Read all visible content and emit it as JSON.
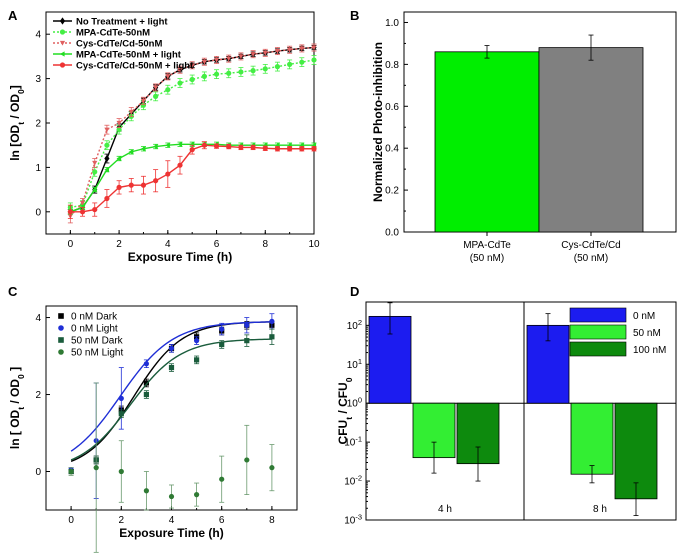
{
  "chart_data": [
    {
      "panel": "A",
      "type": "line",
      "xlabel": "Exposure Time (h)",
      "ylabel": "ln [OD_t / OD_0]",
      "xlim": [
        -1,
        10
      ],
      "ylim": [
        -0.5,
        4.5
      ],
      "xticks": [
        0,
        2,
        4,
        6,
        8,
        10
      ],
      "yticks": [
        0,
        1,
        2,
        3,
        4
      ],
      "legend_position": "top-left",
      "series": [
        {
          "name": "No Treatment + light",
          "color": "#000000",
          "marker": "diamond",
          "dash": "solid",
          "x": [
            0,
            0.5,
            1,
            1.5,
            2,
            2.5,
            3,
            3.5,
            4,
            4.5,
            5,
            5.5,
            6,
            6.5,
            7,
            7.5,
            8,
            8.5,
            9,
            9.5,
            10
          ],
          "y": [
            0.0,
            0.1,
            0.5,
            1.2,
            1.9,
            2.2,
            2.5,
            2.8,
            3.05,
            3.2,
            3.3,
            3.38,
            3.42,
            3.45,
            3.5,
            3.55,
            3.58,
            3.62,
            3.65,
            3.68,
            3.7
          ],
          "err": [
            0.05,
            0.05,
            0.08,
            0.1,
            0.08,
            0.06,
            0.06,
            0.06,
            0.06,
            0.05,
            0.05,
            0.05,
            0.05,
            0.05,
            0.05,
            0.05,
            0.05,
            0.05,
            0.05,
            0.05,
            0.05
          ]
        },
        {
          "name": "MPA-CdTe-50nM",
          "color": "#44ee44",
          "marker": "circle",
          "dash": "dotted",
          "x": [
            0,
            0.5,
            1,
            1.5,
            2,
            2.5,
            3,
            3.5,
            4,
            4.5,
            5,
            5.5,
            6,
            6.5,
            7,
            7.5,
            8,
            8.5,
            9,
            9.5,
            10
          ],
          "y": [
            0.1,
            0.15,
            0.9,
            1.5,
            1.85,
            2.15,
            2.4,
            2.6,
            2.75,
            2.9,
            2.98,
            3.05,
            3.1,
            3.12,
            3.15,
            3.18,
            3.22,
            3.27,
            3.32,
            3.37,
            3.42
          ],
          "err": [
            0.1,
            0.1,
            0.1,
            0.1,
            0.1,
            0.1,
            0.1,
            0.1,
            0.1,
            0.1,
            0.1,
            0.1,
            0.1,
            0.1,
            0.1,
            0.1,
            0.1,
            0.1,
            0.1,
            0.1,
            0.1
          ]
        },
        {
          "name": "Cys-CdTe/Cd-50nM",
          "color": "#e06060",
          "marker": "triangle-down",
          "dash": "dotted",
          "x": [
            0,
            0.5,
            1,
            1.5,
            2,
            2.5,
            3,
            3.5,
            4,
            4.5,
            5,
            5.5,
            6,
            6.5,
            7,
            7.5,
            8,
            8.5,
            9,
            9.5,
            10
          ],
          "y": [
            -0.1,
            0.2,
            1.1,
            1.85,
            2.0,
            2.25,
            2.5,
            2.8,
            3.05,
            3.2,
            3.3,
            3.38,
            3.42,
            3.45,
            3.5,
            3.55,
            3.58,
            3.62,
            3.65,
            3.68,
            3.7
          ],
          "err": [
            0.15,
            0.1,
            0.1,
            0.1,
            0.1,
            0.1,
            0.08,
            0.08,
            0.08,
            0.08,
            0.08,
            0.08,
            0.08,
            0.08,
            0.08,
            0.08,
            0.08,
            0.08,
            0.08,
            0.08,
            0.08
          ]
        },
        {
          "name": "MPA-CdTe-50nM + light",
          "color": "#22dd22",
          "marker": "triangle-left",
          "dash": "solid",
          "x": [
            0,
            0.5,
            1,
            1.5,
            2,
            2.5,
            3,
            3.5,
            4,
            4.5,
            5,
            5.5,
            6,
            6.5,
            7,
            7.5,
            8,
            8.5,
            9,
            9.5,
            10
          ],
          "y": [
            0.0,
            0.1,
            0.5,
            0.95,
            1.2,
            1.35,
            1.42,
            1.47,
            1.5,
            1.52,
            1.52,
            1.52,
            1.52,
            1.5,
            1.5,
            1.5,
            1.5,
            1.5,
            1.5,
            1.5,
            1.5
          ],
          "err": [
            0.05,
            0.05,
            0.05,
            0.05,
            0.05,
            0.05,
            0.05,
            0.05,
            0.05,
            0.05,
            0.05,
            0.05,
            0.05,
            0.05,
            0.05,
            0.05,
            0.05,
            0.05,
            0.05,
            0.05,
            0.05
          ]
        },
        {
          "name": "Cys-CdTe/Cd-50nM + light",
          "color": "#ee3333",
          "marker": "circle",
          "dash": "solid",
          "x": [
            0,
            0.5,
            1,
            1.5,
            2,
            2.5,
            3,
            3.5,
            4,
            4.5,
            5,
            5.5,
            6,
            6.5,
            7,
            7.5,
            8,
            8.5,
            9,
            9.5,
            10
          ],
          "y": [
            0.0,
            0.0,
            0.05,
            0.3,
            0.55,
            0.6,
            0.6,
            0.7,
            0.85,
            1.05,
            1.4,
            1.5,
            1.48,
            1.47,
            1.45,
            1.45,
            1.43,
            1.42,
            1.42,
            1.42,
            1.42
          ],
          "err": [
            0.15,
            0.1,
            0.15,
            0.2,
            0.15,
            0.15,
            0.2,
            0.25,
            0.3,
            0.2,
            0.1,
            0.08,
            0.05,
            0.05,
            0.05,
            0.05,
            0.05,
            0.05,
            0.05,
            0.05,
            0.05
          ]
        }
      ]
    },
    {
      "panel": "B",
      "type": "bar",
      "ylabel": "Normalized Photo-inhibition",
      "categories": [
        "MPA-CdTe\n(50 nM)",
        "Cys-CdTe/Cd\n(50 nM)"
      ],
      "values": [
        0.86,
        0.88
      ],
      "err": [
        0.03,
        0.06
      ],
      "colors": [
        "#00ee00",
        "#808080"
      ],
      "ylim": [
        0,
        1.05
      ],
      "yticks": [
        "0.0",
        "0.2",
        "0.4",
        "0.6",
        "0.8",
        "1.0"
      ]
    },
    {
      "panel": "C",
      "type": "scatter",
      "xlabel": "Exposure Time (h)",
      "ylabel": "ln [ OD_t / OD_0 ]",
      "xlim": [
        -1,
        9
      ],
      "ylim": [
        -1,
        4.3
      ],
      "xticks": [
        0,
        2,
        4,
        6,
        8
      ],
      "yticks": [
        0,
        2,
        4
      ],
      "legend_position": "top-left",
      "series": [
        {
          "name": "0 nM Dark",
          "color": "#000000",
          "marker": "square",
          "x": [
            0,
            1,
            2,
            3,
            4,
            5,
            6,
            7,
            8
          ],
          "y": [
            0.0,
            0.3,
            1.6,
            2.3,
            3.2,
            3.5,
            3.65,
            3.8,
            3.8
          ],
          "err": [
            0.05,
            0.1,
            0.1,
            0.1,
            0.1,
            0.1,
            0.1,
            0.1,
            0.1
          ],
          "fit": {
            "A": 3.9,
            "k": 1.05,
            "x0": 2.5
          }
        },
        {
          "name": "0 nM Light",
          "color": "#1f2fd6",
          "marker": "circle",
          "x": [
            0,
            1,
            2,
            3,
            4,
            5,
            6,
            7,
            8
          ],
          "y": [
            0.05,
            0.8,
            1.9,
            2.8,
            3.2,
            3.4,
            3.7,
            3.8,
            3.9
          ],
          "err": [
            0.05,
            1.5,
            0.8,
            0.1,
            0.1,
            0.1,
            0.15,
            0.2,
            0.2
          ],
          "fit": {
            "A": 3.9,
            "k": 0.95,
            "x0": 1.95
          }
        },
        {
          "name": "50 nM Dark",
          "color": "#1a5c3c",
          "marker": "square",
          "x": [
            0,
            1,
            2,
            3,
            4,
            5,
            6,
            7,
            8
          ],
          "y": [
            0.0,
            0.3,
            1.5,
            2.0,
            2.7,
            2.9,
            3.3,
            3.4,
            3.5
          ],
          "err": [
            0.05,
            0.1,
            0.1,
            0.1,
            0.1,
            0.1,
            0.1,
            0.15,
            0.2
          ],
          "fit": {
            "A": 3.45,
            "k": 1.0,
            "x0": 2.35
          }
        },
        {
          "name": "50 nM Light",
          "color": "#2f7a34",
          "marker": "circle",
          "x": [
            0,
            1,
            2,
            3,
            4,
            5,
            6,
            7,
            8
          ],
          "y": [
            0.0,
            0.1,
            0.0,
            -0.5,
            -0.65,
            -0.6,
            -0.2,
            0.3,
            0.1
          ],
          "err": [
            0.1,
            2.2,
            0.8,
            0.5,
            0.3,
            0.3,
            0.6,
            0.9,
            0.6
          ]
        }
      ]
    },
    {
      "panel": "D",
      "type": "bar",
      "ylabel": "CFU_t / CFU_0",
      "log_scale": true,
      "yrange_exp": [
        -3,
        2.6
      ],
      "yticks_exp": [
        -3,
        -2,
        -1,
        0,
        1,
        2
      ],
      "groups": [
        "4 h",
        "8 h"
      ],
      "series": [
        {
          "name": "0 nM",
          "color": "#1c1cf0",
          "values": [
            170,
            100
          ],
          "err_hi": [
            380,
            200
          ],
          "err_lo": [
            60,
            40
          ]
        },
        {
          "name": "50 nM",
          "color": "#33ee33",
          "values": [
            0.04,
            0.015
          ],
          "err_hi": [
            0.1,
            0.025
          ],
          "err_lo": [
            0.016,
            0.009
          ]
        },
        {
          "name": "100 nM",
          "color": "#0d8a0d",
          "values": [
            0.028,
            0.0035
          ],
          "err_hi": [
            0.075,
            0.009
          ],
          "err_lo": [
            0.01,
            0.0013
          ]
        }
      ]
    }
  ]
}
